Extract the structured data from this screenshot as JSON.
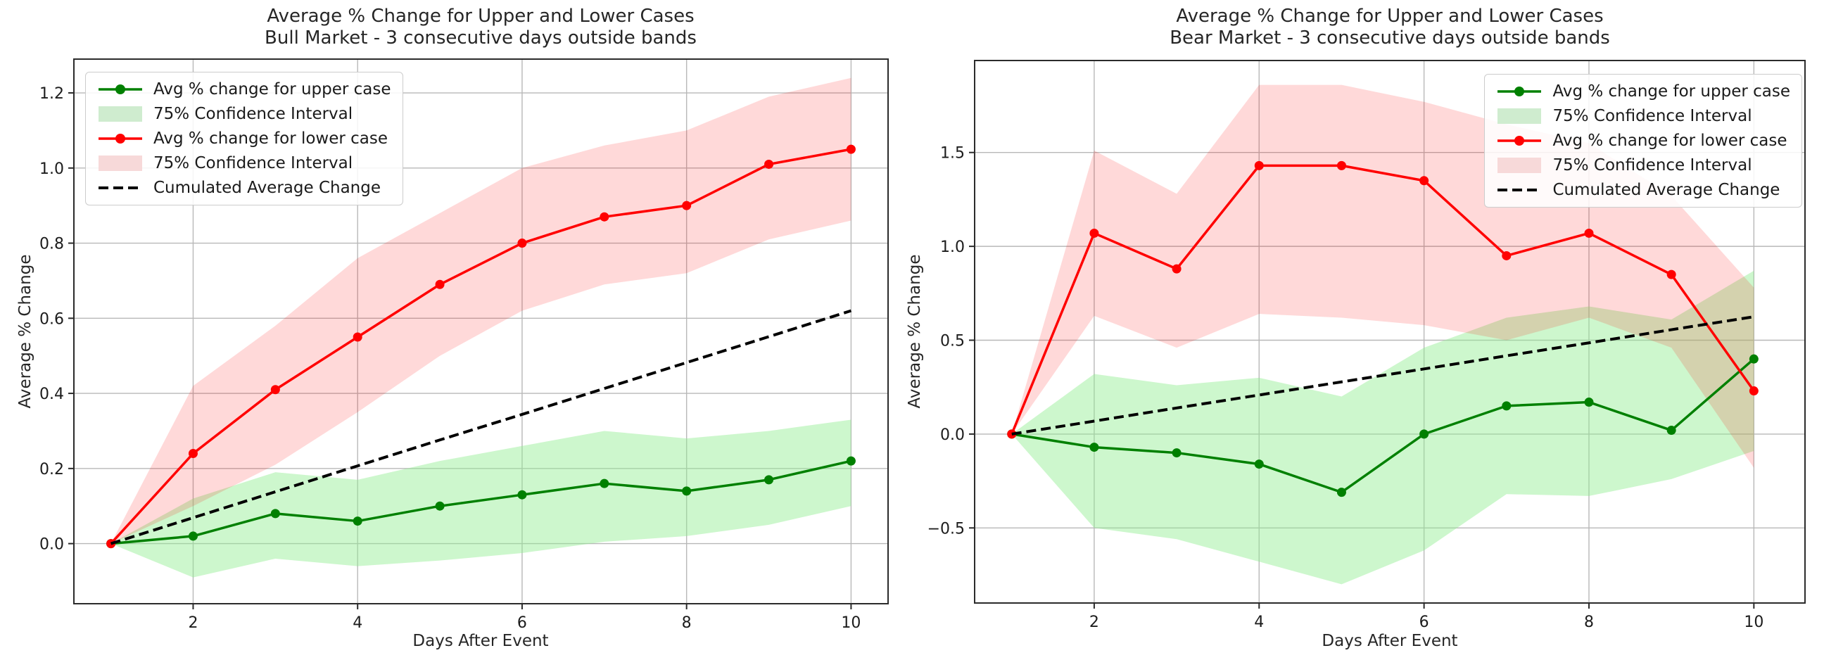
{
  "figure": {
    "background": "#ffffff",
    "text_color": "#262626",
    "grid_color": "#b8b8b8",
    "spine_color": "#2b2b2b"
  },
  "chart_data": [
    {
      "type": "line",
      "title": "Average % Change for Upper and Lower Cases",
      "subtitle": "Bull Market - 3 consecutive days outside bands",
      "xlabel": "Days After Event",
      "ylabel": "Average % Change",
      "x": [
        1,
        2,
        3,
        4,
        5,
        6,
        7,
        8,
        9,
        10
      ],
      "xticks": [
        2,
        4,
        6,
        8,
        10
      ],
      "xtick_labels": [
        "2",
        "4",
        "6",
        "8",
        "10"
      ],
      "yticks": [
        0.0,
        0.2,
        0.4,
        0.6,
        0.8,
        1.0,
        1.2
      ],
      "ytick_labels": [
        "0.0",
        "0.2",
        "0.4",
        "0.6",
        "0.8",
        "1.0",
        "1.2"
      ],
      "xlim": [
        0.55,
        10.45
      ],
      "ylim": [
        -0.16,
        1.29
      ],
      "grid": true,
      "legend_position": "upper left",
      "series": [
        {
          "name": "Avg % change for upper case",
          "kind": "line",
          "color": "#008000",
          "values": [
            0.0,
            0.02,
            0.08,
            0.06,
            0.1,
            0.13,
            0.16,
            0.14,
            0.17,
            0.22
          ]
        },
        {
          "name": "75% Confidence Interval",
          "kind": "band",
          "color": "rgba(144,238,144,0.45)",
          "legend_swatch": "#cfeccf",
          "upper": [
            0.0,
            0.12,
            0.19,
            0.17,
            0.22,
            0.26,
            0.3,
            0.28,
            0.3,
            0.33
          ],
          "lower": [
            0.0,
            -0.09,
            -0.04,
            -0.06,
            -0.045,
            -0.025,
            0.005,
            0.02,
            0.05,
            0.1
          ]
        },
        {
          "name": "Avg % change for lower case",
          "kind": "line",
          "color": "#ff0000",
          "values": [
            0.0,
            0.24,
            0.41,
            0.55,
            0.69,
            0.8,
            0.87,
            0.9,
            1.01,
            1.05
          ]
        },
        {
          "name": "75% Confidence Interval",
          "kind": "band",
          "color": "rgba(255,0,0,0.15)",
          "legend_swatch": "#f7d9d9",
          "upper": [
            0.0,
            0.42,
            0.58,
            0.76,
            0.88,
            1.0,
            1.06,
            1.1,
            1.19,
            1.24
          ],
          "lower": [
            0.0,
            0.1,
            0.21,
            0.35,
            0.5,
            0.62,
            0.69,
            0.72,
            0.81,
            0.86
          ]
        },
        {
          "name": "Cumulated Average Change",
          "kind": "dashed",
          "color": "#000000",
          "values": [
            0.0,
            0.069,
            0.138,
            0.207,
            0.276,
            0.344,
            0.413,
            0.482,
            0.551,
            0.62
          ]
        }
      ]
    },
    {
      "type": "line",
      "title": "Average % Change for Upper and Lower Cases",
      "subtitle": "Bear Market - 3 consecutive days outside bands",
      "xlabel": "Days After Event",
      "ylabel": "Average % Change",
      "x": [
        1,
        2,
        3,
        4,
        5,
        6,
        7,
        8,
        9,
        10
      ],
      "xticks": [
        2,
        4,
        6,
        8,
        10
      ],
      "xtick_labels": [
        "2",
        "4",
        "6",
        "8",
        "10"
      ],
      "yticks": [
        -0.5,
        0.0,
        0.5,
        1.0,
        1.5
      ],
      "ytick_labels": [
        "−0.5",
        "0.0",
        "0.5",
        "1.0",
        "1.5"
      ],
      "xlim": [
        0.55,
        10.62
      ],
      "ylim": [
        -0.9,
        1.99
      ],
      "grid": true,
      "legend_position": "upper right",
      "series": [
        {
          "name": "Avg % change for upper case",
          "kind": "line",
          "color": "#008000",
          "values": [
            0.0,
            -0.07,
            -0.1,
            -0.16,
            -0.31,
            0.0,
            0.15,
            0.17,
            0.02,
            0.4
          ]
        },
        {
          "name": "75% Confidence Interval",
          "kind": "band",
          "color": "rgba(144,238,144,0.45)",
          "legend_swatch": "#cfeccf",
          "upper": [
            0.0,
            0.32,
            0.26,
            0.3,
            0.2,
            0.46,
            0.62,
            0.68,
            0.61,
            0.87
          ],
          "lower": [
            0.0,
            -0.5,
            -0.56,
            -0.68,
            -0.8,
            -0.62,
            -0.32,
            -0.33,
            -0.24,
            -0.09
          ]
        },
        {
          "name": "Avg % change for lower case",
          "kind": "line",
          "color": "#ff0000",
          "values": [
            0.0,
            1.07,
            0.88,
            1.43,
            1.43,
            1.35,
            0.95,
            1.07,
            0.85,
            0.23
          ]
        },
        {
          "name": "75% Confidence Interval",
          "kind": "band",
          "color": "rgba(255,0,0,0.15)",
          "legend_swatch": "#f7d9d9",
          "upper": [
            0.0,
            1.51,
            1.28,
            1.86,
            1.86,
            1.77,
            1.65,
            1.55,
            1.27,
            0.78
          ],
          "lower": [
            0.0,
            0.63,
            0.46,
            0.64,
            0.62,
            0.58,
            0.5,
            0.62,
            0.46,
            -0.18
          ]
        },
        {
          "name": "Cumulated Average Change",
          "kind": "dashed",
          "color": "#000000",
          "values": [
            0.0,
            0.069,
            0.139,
            0.208,
            0.278,
            0.347,
            0.417,
            0.486,
            0.556,
            0.625
          ]
        }
      ]
    }
  ]
}
